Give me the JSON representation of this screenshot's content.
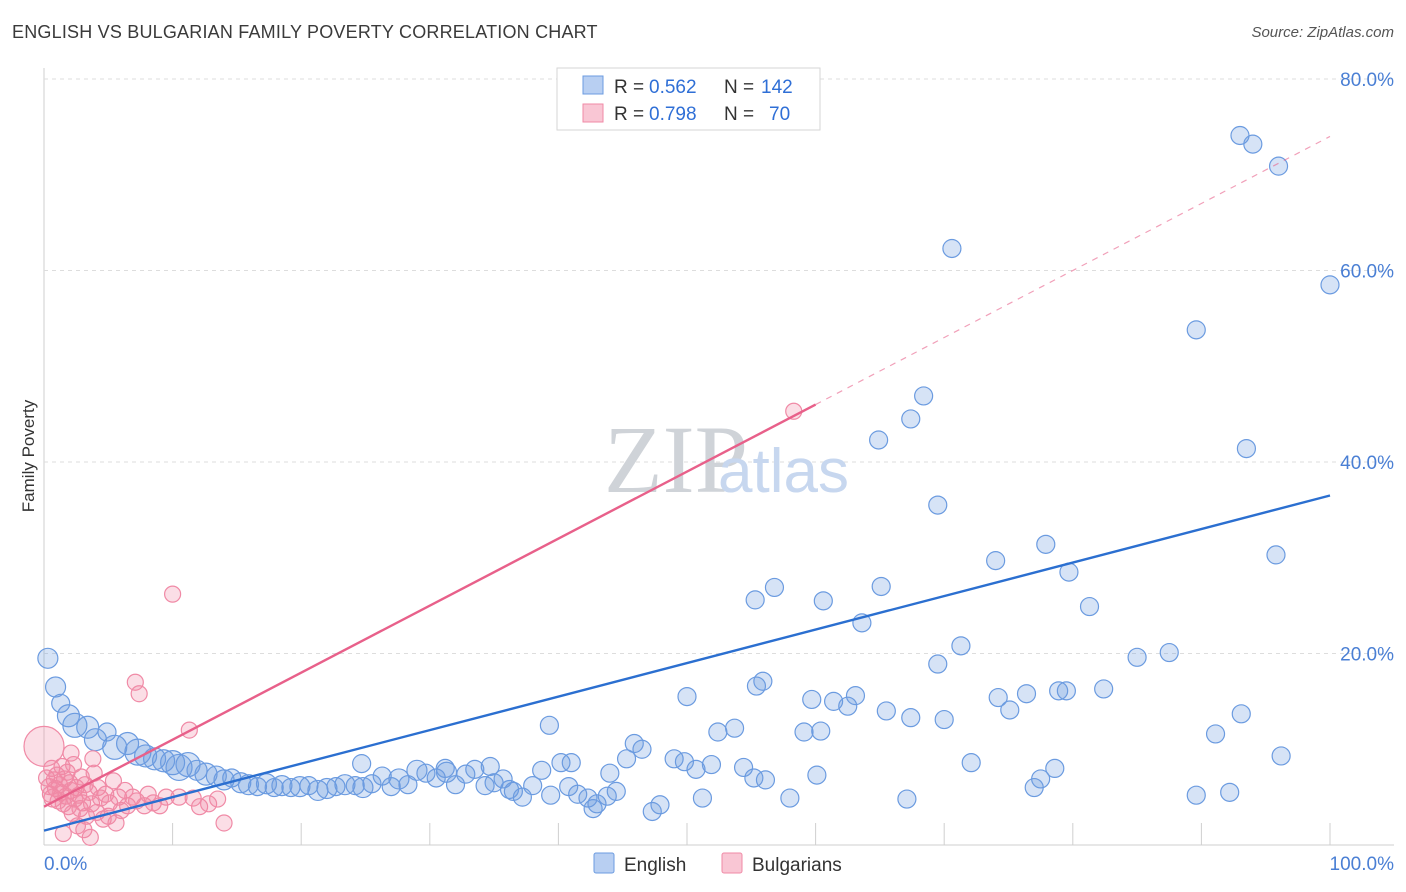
{
  "title": "ENGLISH VS BULGARIAN FAMILY POVERTY CORRELATION CHART",
  "source": "Source: ZipAtlas.com",
  "watermark": {
    "zip": "ZIP",
    "atlas": "atlas"
  },
  "colors": {
    "english": "#6b9be0",
    "bulgarians": "#f08aa6",
    "english_line": "#2b6fd0",
    "bulgarians_line": "#e8608a",
    "tick": "#4a7fd4"
  },
  "legend": {
    "rows": [
      {
        "r_label": "R = ",
        "r_value": "0.562",
        "n_label": "N = ",
        "n_value": "142"
      },
      {
        "r_label": "R = ",
        "r_value": "0.798",
        "n_label": "N = ",
        "n_value": "70"
      }
    ],
    "bottom": [
      "English",
      "Bulgarians"
    ]
  },
  "chart_data": {
    "type": "scatter",
    "xlabel": "",
    "ylabel": "Family Poverty",
    "xlim": [
      0,
      100
    ],
    "ylim": [
      0,
      80
    ],
    "x_tick_labels": [
      "0.0%",
      "100.0%"
    ],
    "y_tick_labels": [
      "20.0%",
      "40.0%",
      "60.0%",
      "80.0%"
    ],
    "y_ticks": [
      20,
      40,
      60,
      80
    ],
    "grid": true,
    "legend_position": "top-center",
    "series": [
      {
        "name": "English",
        "stats": {
          "R": 0.562,
          "N": 142
        },
        "trend": {
          "x0": 0,
          "y0": 1.5,
          "x1": 100,
          "y1": 36.5
        },
        "points": [
          [
            0.3,
            19.5,
            10
          ],
          [
            0.9,
            16.5,
            10
          ],
          [
            1.3,
            14.8,
            9
          ],
          [
            1.9,
            13.5,
            11
          ],
          [
            2.4,
            12.5,
            12
          ],
          [
            3.4,
            12.3,
            11
          ],
          [
            4.0,
            11.0,
            11
          ],
          [
            4.9,
            11.8,
            9
          ],
          [
            5.5,
            10.2,
            12
          ],
          [
            6.5,
            10.6,
            11
          ],
          [
            7.3,
            9.7,
            13
          ],
          [
            7.9,
            9.3,
            11
          ],
          [
            8.6,
            9.0,
            11
          ],
          [
            9.3,
            8.8,
            11
          ],
          [
            10.0,
            8.6,
            12
          ],
          [
            10.5,
            8.1,
            13
          ],
          [
            11.2,
            8.4,
            12
          ],
          [
            11.9,
            7.8,
            10
          ],
          [
            12.6,
            7.4,
            11
          ],
          [
            13.4,
            7.2,
            10
          ],
          [
            14.0,
            6.8,
            10
          ],
          [
            14.6,
            7.0,
            9
          ],
          [
            15.3,
            6.5,
            10
          ],
          [
            15.9,
            6.3,
            10
          ],
          [
            16.6,
            6.1,
            9
          ],
          [
            17.3,
            6.4,
            10
          ],
          [
            17.9,
            6.0,
            9
          ],
          [
            18.5,
            6.2,
            10
          ],
          [
            19.2,
            6.0,
            9
          ],
          [
            19.9,
            6.1,
            10
          ],
          [
            20.6,
            6.2,
            9
          ],
          [
            21.3,
            5.7,
            10
          ],
          [
            22.0,
            5.9,
            10
          ],
          [
            22.7,
            6.1,
            9
          ],
          [
            23.4,
            6.3,
            10
          ],
          [
            24.2,
            6.2,
            9
          ],
          [
            24.8,
            6.0,
            10
          ],
          [
            25.5,
            6.4,
            9
          ],
          [
            26.3,
            7.2,
            9
          ],
          [
            27.0,
            6.1,
            9
          ],
          [
            27.6,
            6.9,
            10
          ],
          [
            28.3,
            6.3,
            9
          ],
          [
            29.0,
            7.8,
            10
          ],
          [
            29.7,
            7.5,
            9
          ],
          [
            30.5,
            7.0,
            9
          ],
          [
            31.3,
            7.6,
            10
          ],
          [
            32.0,
            6.3,
            9
          ],
          [
            32.8,
            7.4,
            9
          ],
          [
            33.5,
            7.9,
            9
          ],
          [
            34.3,
            6.2,
            9
          ],
          [
            35.0,
            6.5,
            9
          ],
          [
            35.7,
            6.9,
            9
          ],
          [
            36.5,
            5.6,
            9
          ],
          [
            37.2,
            5.0,
            9
          ],
          [
            38.0,
            6.2,
            9
          ],
          [
            38.7,
            7.8,
            9
          ],
          [
            39.4,
            5.2,
            9
          ],
          [
            40.2,
            8.6,
            9
          ],
          [
            40.8,
            6.1,
            9
          ],
          [
            41.5,
            5.3,
            9
          ],
          [
            42.3,
            4.9,
            9
          ],
          [
            43.0,
            4.3,
            9
          ],
          [
            43.8,
            5.1,
            9
          ],
          [
            44.5,
            5.6,
            9
          ],
          [
            45.3,
            9.0,
            9
          ],
          [
            45.9,
            10.6,
            9
          ],
          [
            46.5,
            10.0,
            9
          ],
          [
            47.3,
            3.5,
            9
          ],
          [
            47.9,
            4.2,
            9
          ],
          [
            49.0,
            9.0,
            9
          ],
          [
            49.8,
            8.7,
            9
          ],
          [
            50.7,
            7.9,
            9
          ],
          [
            51.2,
            4.9,
            9
          ],
          [
            52.4,
            11.8,
            9
          ],
          [
            53.7,
            12.2,
            9
          ],
          [
            55.2,
            7.0,
            9
          ],
          [
            56.1,
            6.8,
            9
          ],
          [
            58.0,
            4.9,
            9
          ],
          [
            59.1,
            11.8,
            9
          ],
          [
            60.4,
            11.9,
            9
          ],
          [
            50.0,
            15.5,
            9
          ],
          [
            39.3,
            12.5,
            9
          ],
          [
            42.7,
            3.8,
            9
          ],
          [
            34.7,
            8.2,
            9
          ],
          [
            31.2,
            8.0,
            9
          ],
          [
            54.4,
            8.1,
            9
          ],
          [
            41.0,
            8.6,
            9
          ],
          [
            36.2,
            5.8,
            9
          ],
          [
            44.0,
            7.5,
            9
          ],
          [
            51.9,
            8.4,
            9
          ],
          [
            55.4,
            16.6,
            9
          ],
          [
            55.9,
            17.1,
            9
          ],
          [
            56.8,
            26.9,
            9
          ],
          [
            59.7,
            15.2,
            9
          ],
          [
            61.4,
            15.0,
            9
          ],
          [
            60.1,
            7.3,
            9
          ],
          [
            62.5,
            14.5,
            9
          ],
          [
            63.1,
            15.6,
            9
          ],
          [
            63.6,
            23.2,
            9
          ],
          [
            65.1,
            27.0,
            9
          ],
          [
            65.5,
            14.0,
            9
          ],
          [
            67.1,
            4.8,
            9
          ],
          [
            67.4,
            13.3,
            9
          ],
          [
            69.5,
            18.9,
            9
          ],
          [
            70.0,
            13.1,
            9
          ],
          [
            71.3,
            20.8,
            9
          ],
          [
            72.1,
            8.6,
            9
          ],
          [
            74.2,
            15.4,
            9
          ],
          [
            75.1,
            14.1,
            9
          ],
          [
            76.4,
            15.8,
            9
          ],
          [
            77.0,
            6.0,
            9
          ],
          [
            77.5,
            6.9,
            9
          ],
          [
            78.6,
            8.0,
            9
          ],
          [
            78.9,
            16.1,
            9
          ],
          [
            79.5,
            16.1,
            9
          ],
          [
            81.3,
            24.9,
            9
          ],
          [
            82.4,
            16.3,
            9
          ],
          [
            85.0,
            19.6,
            9
          ],
          [
            87.5,
            20.1,
            9
          ],
          [
            89.6,
            5.2,
            9
          ],
          [
            92.2,
            5.5,
            9
          ],
          [
            91.1,
            11.6,
            9
          ],
          [
            93.1,
            13.7,
            9
          ],
          [
            96.2,
            9.3,
            9
          ],
          [
            55.3,
            25.6,
            9
          ],
          [
            60.6,
            25.5,
            9
          ],
          [
            64.9,
            42.3,
            9
          ],
          [
            68.4,
            46.9,
            9
          ],
          [
            69.5,
            35.5,
            9
          ],
          [
            70.6,
            62.3,
            9
          ],
          [
            74.0,
            29.7,
            9
          ],
          [
            77.9,
            31.4,
            9
          ],
          [
            79.7,
            28.5,
            9
          ],
          [
            89.6,
            53.8,
            9
          ],
          [
            93.5,
            41.4,
            9
          ],
          [
            95.8,
            30.3,
            9
          ],
          [
            93.0,
            74.1,
            9
          ],
          [
            96.0,
            70.9,
            9
          ],
          [
            100.0,
            58.5,
            9
          ],
          [
            67.4,
            44.5,
            9
          ],
          [
            94.0,
            73.2,
            9
          ],
          [
            24.7,
            8.5,
            9
          ]
        ]
      },
      {
        "name": "Bulgarians",
        "stats": {
          "R": 0.798,
          "N": 70
        },
        "trend": {
          "x0": 0,
          "y0": 4.0,
          "x1": 60,
          "y1": 46.0
        },
        "trend_extension": {
          "x0": 60,
          "y0": 46.0,
          "x1": 100,
          "y1": 74.0
        },
        "points": [
          [
            0.0,
            10.3,
            20
          ],
          [
            0.2,
            7.0,
            8
          ],
          [
            0.4,
            6.1,
            8
          ],
          [
            0.5,
            5.3,
            8
          ],
          [
            0.6,
            8.0,
            8
          ],
          [
            0.7,
            4.9,
            9
          ],
          [
            0.8,
            6.8,
            8
          ],
          [
            0.9,
            5.9,
            8
          ],
          [
            1.0,
            7.3,
            8
          ],
          [
            1.1,
            4.6,
            8
          ],
          [
            1.2,
            6.3,
            8
          ],
          [
            1.3,
            5.5,
            8
          ],
          [
            1.4,
            8.2,
            8
          ],
          [
            1.5,
            4.3,
            8
          ],
          [
            1.6,
            6.9,
            8
          ],
          [
            1.7,
            5.1,
            8
          ],
          [
            1.8,
            7.6,
            8
          ],
          [
            1.9,
            4.0,
            8
          ],
          [
            2.0,
            6.5,
            8
          ],
          [
            2.1,
            5.7,
            8
          ],
          [
            2.2,
            3.3,
            8
          ],
          [
            2.3,
            8.4,
            8
          ],
          [
            2.4,
            4.8,
            8
          ],
          [
            2.5,
            6.0,
            8
          ],
          [
            2.6,
            2.0,
            8
          ],
          [
            2.7,
            5.2,
            8
          ],
          [
            2.8,
            3.8,
            8
          ],
          [
            2.9,
            7.1,
            8
          ],
          [
            3.0,
            4.4,
            8
          ],
          [
            3.1,
            1.6,
            8
          ],
          [
            3.2,
            6.3,
            8
          ],
          [
            3.3,
            3.0,
            8
          ],
          [
            3.5,
            5.5,
            8
          ],
          [
            3.7,
            4.3,
            8
          ],
          [
            3.8,
            9.0,
            8
          ],
          [
            3.9,
            7.5,
            8
          ],
          [
            4.1,
            3.4,
            8
          ],
          [
            4.2,
            6.0,
            8
          ],
          [
            4.4,
            4.9,
            8
          ],
          [
            4.6,
            2.7,
            8
          ],
          [
            4.8,
            5.3,
            8
          ],
          [
            5.0,
            3.0,
            8
          ],
          [
            5.1,
            4.4,
            8
          ],
          [
            5.4,
            6.7,
            8
          ],
          [
            5.6,
            2.3,
            8
          ],
          [
            5.8,
            5.0,
            8
          ],
          [
            6.0,
            3.6,
            8
          ],
          [
            6.3,
            5.7,
            8
          ],
          [
            6.5,
            4.1,
            8
          ],
          [
            6.9,
            5.0,
            8
          ],
          [
            7.1,
            17.0,
            8
          ],
          [
            7.2,
            4.6,
            8
          ],
          [
            7.4,
            15.8,
            8
          ],
          [
            7.8,
            4.1,
            8
          ],
          [
            8.1,
            5.3,
            8
          ],
          [
            8.5,
            4.4,
            8
          ],
          [
            9.0,
            4.1,
            8
          ],
          [
            9.5,
            5.0,
            8
          ],
          [
            10.0,
            26.2,
            8
          ],
          [
            10.5,
            5.0,
            8
          ],
          [
            11.3,
            12.0,
            8
          ],
          [
            11.6,
            4.9,
            8
          ],
          [
            12.1,
            4.0,
            8
          ],
          [
            12.8,
            4.3,
            8
          ],
          [
            13.5,
            4.8,
            8
          ],
          [
            14.0,
            2.3,
            8
          ],
          [
            3.6,
            0.8,
            8
          ],
          [
            1.5,
            1.2,
            8
          ],
          [
            2.1,
            9.6,
            8
          ],
          [
            58.3,
            45.3,
            8
          ]
        ]
      }
    ]
  }
}
